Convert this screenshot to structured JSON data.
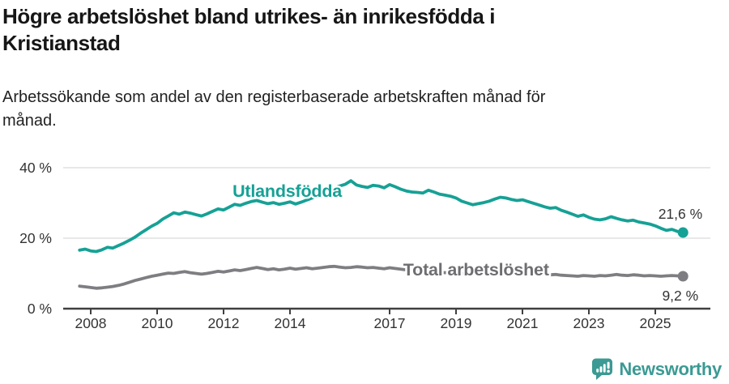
{
  "header": {
    "title_lines": [
      "Högre arbetslöshet bland utrikes- än inrikesfödda i",
      "Kristianstad"
    ],
    "subtitle_lines": [
      "Arbetssökande som andel av den registerbaserade arbetskraften månad för",
      "månad."
    ]
  },
  "footer": {
    "brand": "Newsworthy",
    "brand_color": "#3b9a93",
    "logo_icon": "newsworthy-speech-bubble-bar-chart-icon"
  },
  "theme": {
    "grid_color": "#d9d9d9",
    "axis_color": "#404040",
    "text_color": "#333333",
    "background": "#ffffff"
  },
  "chart_data": {
    "type": "line",
    "title": "Högre arbetslöshet bland utrikes- än inrikesfödda i Kristianstad",
    "subtitle": "Arbetssökande som andel av den registerbaserade arbetskraften månad för månad.",
    "xlabel": "",
    "ylabel": "",
    "grid": true,
    "legend_position": "inline-labels",
    "xlim": [
      2007.5,
      2026.1
    ],
    "ylim": [
      0,
      43
    ],
    "x_axis": {
      "ticks": [
        2008,
        2010,
        2012,
        2014,
        2017,
        2019,
        2021,
        2023,
        2025
      ],
      "tick_labels": [
        "2008",
        "2010",
        "2012",
        "2014",
        "2017",
        "2019",
        "2021",
        "2023",
        "2025"
      ]
    },
    "y_axis": {
      "ticks": [
        0,
        20,
        40
      ],
      "tick_labels": [
        "0 %",
        "20 %",
        "40 %"
      ]
    },
    "series": [
      {
        "name": "Utlandsfödda",
        "color": "#16a195",
        "label_color": "#16a195",
        "label_at": {
          "x": 2012.27,
          "y": 31.7
        },
        "end_label": "21,6 %",
        "end_label_position": "above",
        "end_value": 21.6,
        "x_start": 2007.667,
        "x_step": 0.16667,
        "values": [
          16.6,
          16.9,
          16.4,
          16.2,
          16.7,
          17.4,
          17.2,
          17.9,
          18.6,
          19.4,
          20.3,
          21.4,
          22.4,
          23.4,
          24.2,
          25.4,
          26.3,
          27.2,
          26.8,
          27.4,
          27.1,
          26.7,
          26.3,
          26.9,
          27.6,
          28.3,
          28.0,
          28.8,
          29.6,
          29.3,
          29.9,
          30.4,
          30.7,
          30.2,
          29.8,
          30.1,
          29.6,
          29.9,
          30.3,
          29.7,
          30.2,
          30.8,
          31.4,
          32.0,
          32.7,
          33.4,
          34.2,
          34.8,
          35.3,
          36.3,
          35.1,
          34.7,
          34.4,
          35.0,
          34.8,
          34.3,
          35.2,
          34.6,
          33.9,
          33.4,
          33.1,
          33.0,
          32.8,
          33.6,
          33.1,
          32.5,
          32.2,
          31.9,
          31.4,
          30.5,
          30.0,
          29.5,
          29.8,
          30.1,
          30.5,
          31.1,
          31.6,
          31.4,
          31.0,
          30.7,
          30.9,
          30.4,
          29.9,
          29.4,
          28.9,
          28.5,
          28.7,
          27.9,
          27.4,
          26.8,
          26.2,
          26.6,
          25.9,
          25.4,
          25.2,
          25.5,
          26.1,
          25.6,
          25.2,
          24.9,
          25.1,
          24.6,
          24.3,
          24.0,
          23.5,
          22.8,
          22.2,
          22.5,
          21.9,
          21.6
        ]
      },
      {
        "name": "Total arbetslöshet",
        "color": "#7e7e82",
        "label_color": "#6e6e72",
        "label_at": {
          "x": 2017.41,
          "y": 9.4
        },
        "end_label": "9,2 %",
        "end_label_position": "below",
        "end_value": 9.2,
        "x_start": 2007.667,
        "x_step": 0.16667,
        "values": [
          6.4,
          6.2,
          6.0,
          5.8,
          5.9,
          6.1,
          6.3,
          6.6,
          7.0,
          7.5,
          8.0,
          8.4,
          8.8,
          9.2,
          9.5,
          9.8,
          10.1,
          10.0,
          10.3,
          10.5,
          10.2,
          10.0,
          9.8,
          10.0,
          10.3,
          10.6,
          10.4,
          10.7,
          11.0,
          10.8,
          11.1,
          11.4,
          11.7,
          11.4,
          11.1,
          11.3,
          11.0,
          11.2,
          11.5,
          11.2,
          11.4,
          11.6,
          11.3,
          11.5,
          11.7,
          11.9,
          12.0,
          11.8,
          11.6,
          11.7,
          11.9,
          11.8,
          11.6,
          11.7,
          11.5,
          11.3,
          11.6,
          11.4,
          11.2,
          11.0,
          10.8,
          10.7,
          10.5,
          10.8,
          10.6,
          10.4,
          10.2,
          10.3,
          10.1,
          10.0,
          9.9,
          9.8,
          10.0,
          10.2,
          10.4,
          10.9,
          11.3,
          11.1,
          10.9,
          10.7,
          10.5,
          10.3,
          10.1,
          9.9,
          9.7,
          9.6,
          9.7,
          9.5,
          9.4,
          9.3,
          9.2,
          9.4,
          9.3,
          9.2,
          9.4,
          9.3,
          9.5,
          9.7,
          9.5,
          9.4,
          9.6,
          9.5,
          9.3,
          9.4,
          9.3,
          9.2,
          9.3,
          9.4,
          9.3,
          9.2
        ]
      }
    ]
  }
}
